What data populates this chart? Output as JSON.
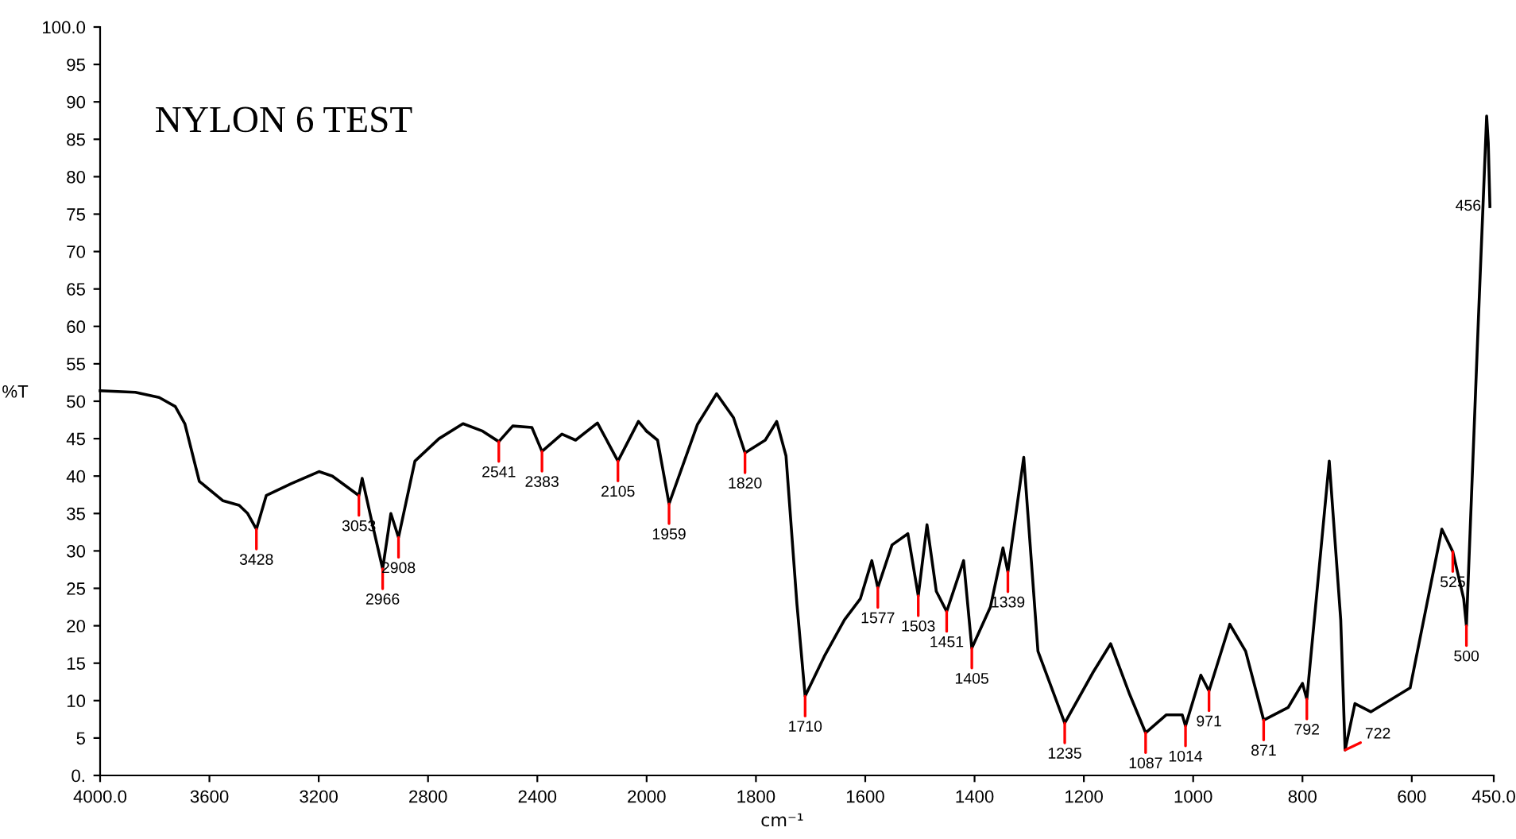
{
  "chart_data": [
    {
      "type": "line",
      "title": "NYLON 6 TEST",
      "ylabel": "%T",
      "xlim": [
        4000,
        2000
      ],
      "ylim": [
        0,
        100
      ],
      "xticks": [
        {
          "value": 4000,
          "label": "4000.0"
        },
        3600,
        3200,
        2800,
        2400
      ],
      "yticks": [
        {
          "value": 0,
          "label": "0."
        },
        5,
        10,
        15,
        20,
        25,
        30,
        35,
        40,
        45,
        50,
        55,
        60,
        65,
        70,
        75,
        80,
        85,
        90,
        95,
        {
          "value": 100,
          "label": "100.0"
        }
      ],
      "grid": false,
      "series": [
        {
          "color": "#000000",
          "x": [
            4000,
            3871,
            3784,
            3725,
            3690,
            3637,
            3550,
            3491,
            3460,
            3428,
            3392,
            3300,
            3199,
            3150,
            3053,
            3041,
            3000,
            2966,
            2936,
            2908,
            2848,
            2760,
            2672,
            2600,
            2541,
            2490,
            2420,
            2383,
            2310,
            2260,
            2180,
            2105,
            2030,
            2000
          ],
          "values": [
            51.4,
            51.2,
            50.5,
            49.3,
            47,
            39.3,
            36.7,
            36.1,
            35,
            32.9,
            37.4,
            39,
            40.6,
            40,
            37.4,
            39.7,
            33,
            27.6,
            35.0,
            31.8,
            42.0,
            45,
            47,
            46,
            44.6,
            46.7,
            46.5,
            43.3,
            45.6,
            44.8,
            47.1,
            42.0,
            47.3,
            46.0
          ]
        }
      ],
      "annotations": [
        {
          "text": "3428",
          "x": 3428,
          "y": 32.9
        },
        {
          "text": "3053",
          "x": 3053,
          "y": 37.4
        },
        {
          "text": "2966",
          "x": 2966,
          "y": 27.6
        },
        {
          "text": "2908",
          "x": 2908,
          "y": 31.8
        },
        {
          "text": "2541",
          "x": 2541,
          "y": 44.6
        },
        {
          "text": "2383",
          "x": 2383,
          "y": 43.3
        },
        {
          "text": "2105",
          "x": 2105,
          "y": 42.0
        }
      ]
    },
    {
      "type": "line",
      "xlabel": "cm⁻¹",
      "tick_labels": "x",
      "xlim": [
        2000,
        450
      ],
      "ylim": [
        0,
        100
      ],
      "xticks": [
        2000,
        1800,
        1600,
        1400,
        1200,
        1000,
        800,
        600,
        {
          "value": 450,
          "label": "450.0"
        }
      ],
      "grid": false,
      "series": [
        {
          "color": "#000000",
          "x": [
            2000,
            1980,
            1959,
            1907,
            1872,
            1841,
            1820,
            1783,
            1762,
            1745,
            1725,
            1710,
            1675,
            1638,
            1609,
            1588,
            1577,
            1551,
            1522,
            1503,
            1487,
            1470,
            1451,
            1420,
            1405,
            1371,
            1348,
            1339,
            1310,
            1284,
            1235,
            1183,
            1151,
            1116,
            1087,
            1049,
            1020,
            1014,
            986,
            971,
            933,
            904,
            871,
            826,
            800,
            792,
            751,
            730,
            722,
            704,
            675,
            603,
            545,
            525,
            505,
            500,
            478,
            463,
            460,
            457
          ],
          "values": [
            46.0,
            44.8,
            36.3,
            46.9,
            51.0,
            47.8,
            43.1,
            44.8,
            47.3,
            42.7,
            22.9,
            10.6,
            15.9,
            20.8,
            23.6,
            28.7,
            25.1,
            30.8,
            32.3,
            24.0,
            33.5,
            24.6,
            21.9,
            28.7,
            17.0,
            22.5,
            30.4,
            27.2,
            42.5,
            16.6,
            7.0,
            13.8,
            17.6,
            10.8,
            5.7,
            8.1,
            8.1,
            6.6,
            13.4,
            11.3,
            20.2,
            16.6,
            7.4,
            9.1,
            12.3,
            10.2,
            42.0,
            20.8,
            3.4,
            9.6,
            8.5,
            11.7,
            32.9,
            29.9,
            23.6,
            20.0,
            61.1,
            88.1,
            84.5,
            76.0
          ]
        }
      ],
      "annotations": [
        {
          "text": "1959",
          "x": 1959,
          "y": 36.3
        },
        {
          "text": "1820",
          "x": 1820,
          "y": 43.1
        },
        {
          "text": "1710",
          "x": 1710,
          "y": 10.6
        },
        {
          "text": "1577",
          "x": 1577,
          "y": 25.1
        },
        {
          "text": "1503",
          "x": 1503,
          "y": 24.0
        },
        {
          "text": "1451",
          "x": 1451,
          "y": 21.9
        },
        {
          "text": "1405",
          "x": 1405,
          "y": 17.0
        },
        {
          "text": "1339",
          "x": 1339,
          "y": 27.2
        },
        {
          "text": "1235",
          "x": 1235,
          "y": 7.0
        },
        {
          "text": "1087",
          "x": 1087,
          "y": 5.7
        },
        {
          "text": "1014",
          "x": 1014,
          "y": 6.6
        },
        {
          "text": "971",
          "x": 971,
          "y": 11.3
        },
        {
          "text": "871",
          "x": 871,
          "y": 7.4
        },
        {
          "text": "792",
          "x": 792,
          "y": 10.2
        },
        {
          "text": "722",
          "x": 722,
          "y": 3.4
        },
        {
          "text": "525",
          "x": 525,
          "y": 29.9
        },
        {
          "text": "500",
          "x": 500,
          "y": 20.0
        },
        {
          "text": "456",
          "x": 457,
          "y": 76.0
        }
      ]
    }
  ]
}
